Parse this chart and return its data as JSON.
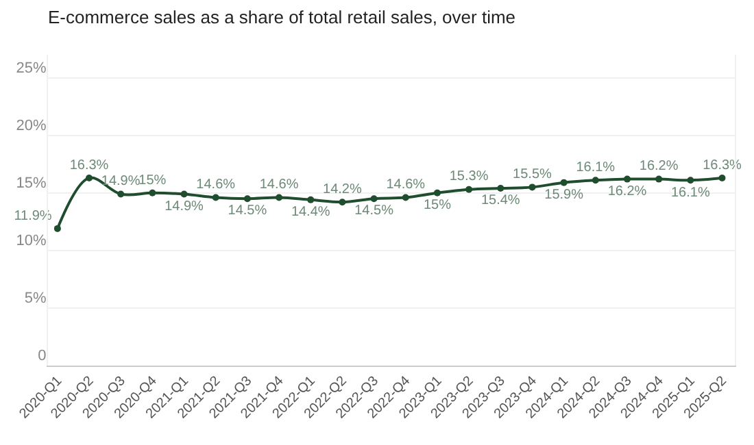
{
  "chart_data": {
    "type": "line",
    "title": "E-commerce sales as a share of total retail sales, over time",
    "categories": [
      "2020-Q1",
      "2020-Q2",
      "2020-Q3",
      "2020-Q4",
      "2021-Q1",
      "2021-Q2",
      "2021-Q3",
      "2021-Q4",
      "2022-Q1",
      "2022-Q2",
      "2022-Q3",
      "2022-Q4",
      "2023-Q1",
      "2023-Q2",
      "2023-Q3",
      "2023-Q4",
      "2024-Q1",
      "2024-Q2",
      "2024-Q3",
      "2024-Q4",
      "2025-Q1",
      "2025-Q2"
    ],
    "series": [
      {
        "color": "#1f4d2e",
        "values": [
          11.9,
          16.3,
          14.9,
          15,
          14.9,
          14.6,
          14.5,
          14.6,
          14.4,
          14.2,
          14.5,
          14.6,
          15,
          15.3,
          15.4,
          15.5,
          15.9,
          16.1,
          16.2,
          16.2,
          16.1,
          16.3
        ],
        "value_labels": [
          "11.9%",
          "16.3%",
          "14.9%",
          "15%",
          "14.9%",
          "14.6%",
          "14.5%",
          "14.6%",
          "14.4%",
          "14.2%",
          "14.5%",
          "14.6%",
          "15%",
          "15.3%",
          "15.4%",
          "15.5%",
          "15.9%",
          "16.1%",
          "16.2%",
          "16.2%",
          "16.1%",
          "16.3%"
        ]
      }
    ],
    "ylim": [
      0,
      27
    ],
    "yticks": [
      {
        "value": 0,
        "label": "0"
      },
      {
        "value": 5,
        "label": "5%"
      },
      {
        "value": 10,
        "label": "10%"
      },
      {
        "value": 15,
        "label": "15%"
      },
      {
        "value": 20,
        "label": "20%"
      },
      {
        "value": 25,
        "label": "25%"
      }
    ],
    "grid": "y",
    "marker": "circle",
    "line_style": "solid",
    "legend": false
  }
}
